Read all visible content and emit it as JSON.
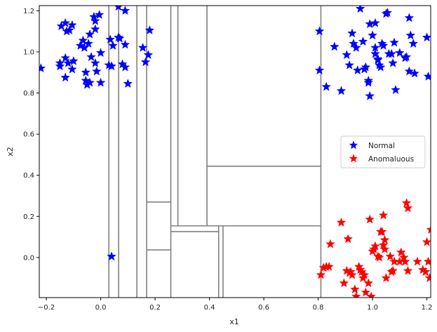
{
  "chart_data": {
    "type": "scatter",
    "title": "",
    "xlabel": "x1",
    "ylabel": "x2",
    "xlim": [
      -0.226,
      1.214
    ],
    "ylim": [
      -0.195,
      1.225
    ],
    "xticks": [
      -0.2,
      0.0,
      0.2,
      0.4,
      0.6,
      0.8,
      1.0,
      1.2
    ],
    "xtick_labels": [
      "−0.2",
      "0.0",
      "0.2",
      "0.4",
      "0.6",
      "0.8",
      "1.0",
      "1.2"
    ],
    "yticks": [
      0.0,
      0.2,
      0.4,
      0.6,
      0.8,
      1.0,
      1.2
    ],
    "ytick_labels": [
      "0.0",
      "0.2",
      "0.4",
      "0.6",
      "0.8",
      "1.0",
      "1.2"
    ],
    "grid": false,
    "legend_position": "center right",
    "legend": [
      {
        "label": "Normal",
        "color": "#0000ff",
        "marker": "star"
      },
      {
        "label": "Anomaluous",
        "color": "#ff0000",
        "marker": "star"
      }
    ],
    "series": [
      {
        "name": "Normal",
        "color": "#0000ff",
        "points": [
          [
            -0.22,
            0.92
          ],
          [
            -0.145,
            1.125
          ],
          [
            -0.13,
            1.14
          ],
          [
            -0.125,
            1.1
          ],
          [
            -0.115,
            1.105
          ],
          [
            -0.105,
            1.13
          ],
          [
            -0.15,
            0.945
          ],
          [
            -0.15,
            0.93
          ],
          [
            -0.13,
            0.97
          ],
          [
            -0.12,
            0.945
          ],
          [
            -0.105,
            0.915
          ],
          [
            -0.1,
            0.955
          ],
          [
            -0.13,
            0.875
          ],
          [
            -0.075,
            1.03
          ],
          [
            -0.065,
            1.055
          ],
          [
            -0.06,
            1.02
          ],
          [
            -0.045,
            1.04
          ],
          [
            -0.04,
            1.085
          ],
          [
            -0.02,
            1.11
          ],
          [
            -0.025,
            1.17
          ],
          [
            -0.02,
            1.15
          ],
          [
            -0.005,
            1.18
          ],
          [
            -0.035,
            0.975
          ],
          [
            -0.02,
            0.945
          ],
          [
            0.0,
            0.995
          ],
          [
            -0.055,
            0.86
          ],
          [
            -0.05,
            0.84
          ],
          [
            -0.04,
            0.85
          ],
          [
            -0.055,
            0.9
          ],
          [
            -0.015,
            0.905
          ],
          [
            0.0,
            0.85
          ],
          [
            0.035,
            1.06
          ],
          [
            0.045,
            1.03
          ],
          [
            0.03,
            0.935
          ],
          [
            0.04,
            0.93
          ],
          [
            0.065,
            1.07
          ],
          [
            0.07,
            1.065
          ],
          [
            0.08,
            0.94
          ],
          [
            0.09,
            0.925
          ],
          [
            0.09,
            1.035
          ],
          [
            0.1,
            0.845
          ],
          [
            0.065,
            1.22
          ],
          [
            0.09,
            1.2
          ],
          [
            0.155,
            1.02
          ],
          [
            0.165,
            0.95
          ],
          [
            0.175,
            0.985
          ],
          [
            0.18,
            1.105
          ],
          [
            0.04,
            0.005
          ],
          [
            0.805,
            1.1
          ],
          [
            0.805,
            0.91
          ],
          [
            0.83,
            0.83
          ],
          [
            0.86,
            1.025
          ],
          [
            0.885,
            0.81
          ],
          [
            0.905,
            0.985
          ],
          [
            0.915,
            0.935
          ],
          [
            0.93,
            1.04
          ],
          [
            0.925,
            1.09
          ],
          [
            0.94,
            1.02
          ],
          [
            0.945,
            0.91
          ],
          [
            0.955,
            1.21
          ],
          [
            0.965,
            1.05
          ],
          [
            0.97,
            0.915
          ],
          [
            0.975,
            0.925
          ],
          [
            0.985,
            0.86
          ],
          [
            0.985,
            0.85
          ],
          [
            0.99,
            0.785
          ],
          [
            0.99,
            1.135
          ],
          [
            1.0,
            1.08
          ],
          [
            1.01,
            1.14
          ],
          [
            1.01,
            0.99
          ],
          [
            1.01,
            1.02
          ],
          [
            1.02,
            0.965
          ],
          [
            1.02,
            0.96
          ],
          [
            1.025,
            0.935
          ],
          [
            1.03,
            0.925
          ],
          [
            1.035,
            1.04
          ],
          [
            1.04,
            1.03
          ],
          [
            1.05,
            1.185
          ],
          [
            1.055,
            1.19
          ],
          [
            1.06,
            0.99
          ],
          [
            1.07,
            0.99
          ],
          [
            1.075,
            0.945
          ],
          [
            1.08,
            1.045
          ],
          [
            1.085,
            0.815
          ],
          [
            1.1,
            0.995
          ],
          [
            1.12,
            0.97
          ],
          [
            1.125,
            0.975
          ],
          [
            1.135,
            1.165
          ],
          [
            1.135,
            0.905
          ],
          [
            1.14,
            1.08
          ],
          [
            1.15,
            1.04
          ],
          [
            1.155,
            0.895
          ],
          [
            1.2,
            1.07
          ],
          [
            1.205,
            0.88
          ]
        ]
      },
      {
        "name": "Anomaluous",
        "color": "#ff0000",
        "points": [
          [
            0.81,
            -0.085
          ],
          [
            0.82,
            -0.05
          ],
          [
            0.83,
            -0.045
          ],
          [
            0.84,
            -0.045
          ],
          [
            0.845,
            0.065
          ],
          [
            0.885,
            0.17
          ],
          [
            0.895,
            -0.125
          ],
          [
            0.905,
            -0.065
          ],
          [
            0.91,
            0.09
          ],
          [
            0.915,
            -0.075
          ],
          [
            0.92,
            -0.07
          ],
          [
            0.925,
            -0.085
          ],
          [
            0.935,
            -0.155
          ],
          [
            0.94,
            -0.19
          ],
          [
            0.95,
            -0.045
          ],
          [
            0.955,
            -0.06
          ],
          [
            0.96,
            -0.07
          ],
          [
            0.965,
            -0.1
          ],
          [
            0.97,
            -0.085
          ],
          [
            0.975,
            -0.17
          ],
          [
            0.985,
            -0.125
          ],
          [
            0.99,
            0.185
          ],
          [
            0.995,
            -0.19
          ],
          [
            1.0,
            0.03
          ],
          [
            1.005,
            0.04
          ],
          [
            1.01,
            0.055
          ],
          [
            1.02,
            0.005
          ],
          [
            1.025,
            0.0
          ],
          [
            1.03,
            0.125
          ],
          [
            1.035,
            0.125
          ],
          [
            1.04,
            0.205
          ],
          [
            1.04,
            0.06
          ],
          [
            1.045,
            0.085
          ],
          [
            1.045,
            0.04
          ],
          [
            1.05,
            -0.1
          ],
          [
            1.065,
            0.005
          ],
          [
            1.07,
            -0.07
          ],
          [
            1.075,
            -0.065
          ],
          [
            1.08,
            -0.02
          ],
          [
            1.1,
            -0.02
          ],
          [
            1.105,
            0.025
          ],
          [
            1.115,
            0.0
          ],
          [
            1.12,
            -0.02
          ],
          [
            1.125,
            0.265
          ],
          [
            1.13,
            0.24
          ],
          [
            1.13,
            -0.065
          ],
          [
            1.165,
            -0.02
          ],
          [
            1.185,
            -0.06
          ],
          [
            1.195,
            -0.07
          ],
          [
            1.2,
            0.075
          ],
          [
            1.205,
            -0.02
          ],
          [
            1.21,
            -0.1
          ],
          [
            1.215,
            0.135
          ]
        ]
      }
    ],
    "partition_lines": [
      {
        "orientation": "v",
        "x": 0.03,
        "y0": -0.195,
        "y1": 1.225
      },
      {
        "orientation": "v",
        "x": 0.066,
        "y0": -0.195,
        "y1": 1.225
      },
      {
        "orientation": "v",
        "x": 0.133,
        "y0": -0.195,
        "y1": 1.225
      },
      {
        "orientation": "v",
        "x": 0.169,
        "y0": -0.195,
        "y1": 1.225
      },
      {
        "orientation": "v",
        "x": 0.258,
        "y0": -0.195,
        "y1": 1.225
      },
      {
        "orientation": "v",
        "x": 0.284,
        "y0": 0.154,
        "y1": 1.225
      },
      {
        "orientation": "v",
        "x": 0.391,
        "y0": 0.154,
        "y1": 1.225
      },
      {
        "orientation": "v",
        "x": 0.434,
        "y0": -0.195,
        "y1": 0.154
      },
      {
        "orientation": "v",
        "x": 0.45,
        "y0": -0.195,
        "y1": 0.154
      },
      {
        "orientation": "v",
        "x": 0.81,
        "y0": -0.195,
        "y1": 1.225
      },
      {
        "orientation": "h",
        "y": 0.444,
        "x0": 0.391,
        "x1": 0.81
      },
      {
        "orientation": "h",
        "y": 0.27,
        "x0": 0.169,
        "x1": 0.258
      },
      {
        "orientation": "h",
        "y": 0.154,
        "x0": 0.258,
        "x1": 0.81
      },
      {
        "orientation": "h",
        "y": 0.126,
        "x0": 0.258,
        "x1": 0.434
      },
      {
        "orientation": "h",
        "y": 0.037,
        "x0": 0.169,
        "x1": 0.258
      }
    ]
  }
}
